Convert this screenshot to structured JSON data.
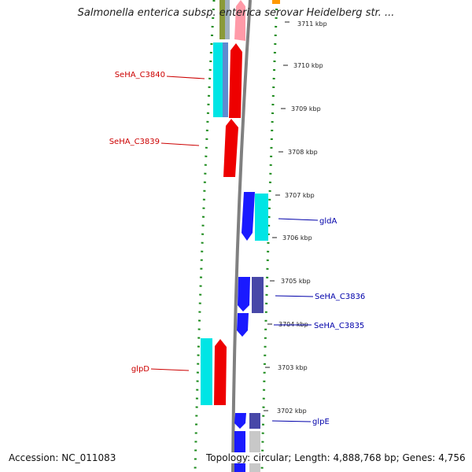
{
  "title": "Salmonella enterica subsp. enterica serovar Heidelberg str. ...",
  "footer": {
    "accession": "Accession: NC_011083",
    "topology": "Topology: circular; Length: 4,888,768 bp; Genes: 4,756"
  },
  "ticks": [
    "3711 kbp",
    "3710 kbp",
    "3709 kbp",
    "3708 kbp",
    "3707 kbp",
    "3706 kbp",
    "3705 kbp",
    "3704 kbp",
    "3703 kbp",
    "3702 kbp"
  ],
  "gene_labels": [
    {
      "text": "SeHA_C3840",
      "color": "#cc0000"
    },
    {
      "text": "SeHA_C3839",
      "color": "#cc0000"
    },
    {
      "text": "glpD",
      "color": "#cc0000"
    },
    {
      "text": "gldA",
      "color": "#0000aa"
    },
    {
      "text": "SeHA_C3836",
      "color": "#0000aa"
    },
    {
      "text": "SeHA_C3835",
      "color": "#0000aa"
    },
    {
      "text": "glpE",
      "color": "#0000aa"
    }
  ],
  "colors": {
    "forward_strand": "#ff0000",
    "reverse_strand": "#0000ff",
    "cyan": "#00e5e5",
    "backbone": "#808080",
    "gc_ring": "#1a8a1a"
  }
}
